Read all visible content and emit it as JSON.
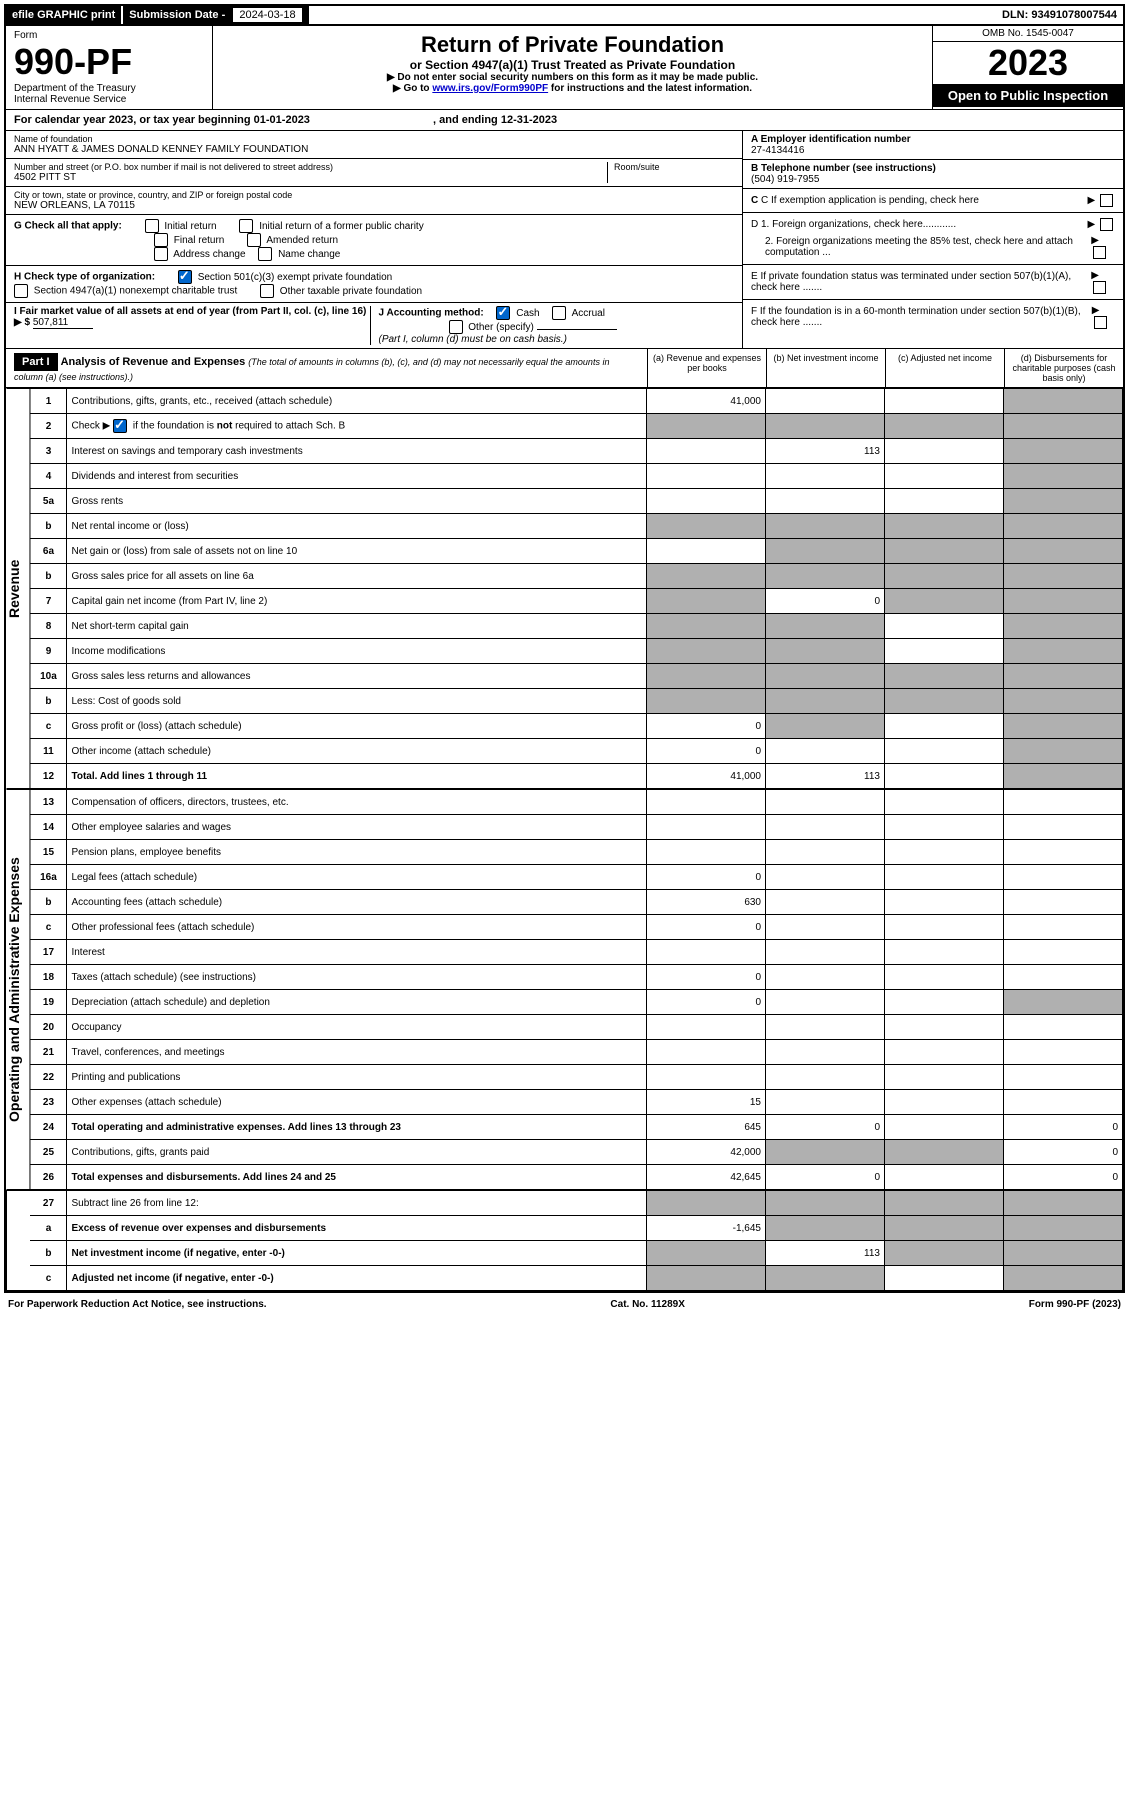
{
  "topbar": {
    "efile": "efile GRAPHIC print",
    "submission_label": "Submission Date - ",
    "submission_date": "2024-03-18",
    "dln": "DLN: 93491078007544"
  },
  "header": {
    "form_word": "Form",
    "form_number": "990-PF",
    "dept1": "Department of the Treasury",
    "dept2": "Internal Revenue Service",
    "title": "Return of Private Foundation",
    "subtitle": "or Section 4947(a)(1) Trust Treated as Private Foundation",
    "instr1": "▶ Do not enter social security numbers on this form as it may be made public.",
    "instr2_pre": "▶ Go to ",
    "instr2_link": "www.irs.gov/Form990PF",
    "instr2_post": " for instructions and the latest information.",
    "omb": "OMB No. 1545-0047",
    "year": "2023",
    "open_public": "Open to Public Inspection"
  },
  "cal_year": {
    "text_pre": "For calendar year 2023, or tax year beginning ",
    "begin": "01-01-2023",
    "text_mid": " , and ending ",
    "end": "12-31-2023"
  },
  "foundation": {
    "name_label": "Name of foundation",
    "name": "ANN HYATT & JAMES DONALD KENNEY FAMILY FOUNDATION",
    "addr_label": "Number and street (or P.O. box number if mail is not delivered to street address)",
    "addr": "4502 PITT ST",
    "room_label": "Room/suite",
    "city_label": "City or town, state or province, country, and ZIP or foreign postal code",
    "city": "NEW ORLEANS, LA  70115",
    "a_label": "A Employer identification number",
    "ein": "27-4134416",
    "b_label": "B Telephone number (see instructions)",
    "phone": "(504) 919-7955",
    "c_label": "C If exemption application is pending, check here",
    "d1": "D 1. Foreign organizations, check here............",
    "d2": "2. Foreign organizations meeting the 85% test, check here and attach computation ...",
    "e_label": "E  If private foundation status was terminated under section 507(b)(1)(A), check here .......",
    "f_label": "F  If the foundation is in a 60-month termination under section 507(b)(1)(B), check here .......",
    "g_label": "G Check all that apply:",
    "g_opts": [
      "Initial return",
      "Initial return of a former public charity",
      "Final return",
      "Amended return",
      "Address change",
      "Name change"
    ],
    "h_label": "H Check type of organization:",
    "h_opt1": "Section 501(c)(3) exempt private foundation",
    "h_opt2": "Section 4947(a)(1) nonexempt charitable trust",
    "h_opt3": "Other taxable private foundation",
    "i_label": "I Fair market value of all assets at end of year (from Part II, col. (c), line 16) ▶ $",
    "i_value": "507,811",
    "j_label": "J Accounting method:",
    "j_cash": "Cash",
    "j_accrual": "Accrual",
    "j_other": "Other (specify)",
    "j_note": "(Part I, column (d) must be on cash basis.)"
  },
  "part1": {
    "label": "Part I",
    "title": "Analysis of Revenue and Expenses",
    "title_note": "(The total of amounts in columns (b), (c), and (d) may not necessarily equal the amounts in column (a) (see instructions).)",
    "col_a": "(a)  Revenue and expenses per books",
    "col_b": "(b)  Net investment income",
    "col_c": "(c)  Adjusted net income",
    "col_d": "(d)  Disbursements for charitable purposes (cash basis only)"
  },
  "revenue_label": "Revenue",
  "expenses_label": "Operating and Administrative Expenses",
  "rows": [
    {
      "n": "1",
      "desc": "Contributions, gifts, grants, etc., received (attach schedule)",
      "a": "41,000",
      "b": "",
      "c": "",
      "d": "",
      "shade": [
        "d"
      ]
    },
    {
      "n": "2",
      "desc": "Check ▶ ☑ if the foundation is not required to attach Sch. B",
      "a": "",
      "b": "",
      "c": "",
      "d": "",
      "shade": [
        "a",
        "b",
        "c",
        "d"
      ],
      "checked": true
    },
    {
      "n": "3",
      "desc": "Interest on savings and temporary cash investments",
      "a": "",
      "b": "113",
      "c": "",
      "d": "",
      "shade": [
        "d"
      ]
    },
    {
      "n": "4",
      "desc": "Dividends and interest from securities",
      "a": "",
      "b": "",
      "c": "",
      "d": "",
      "shade": [
        "d"
      ]
    },
    {
      "n": "5a",
      "desc": "Gross rents",
      "a": "",
      "b": "",
      "c": "",
      "d": "",
      "shade": [
        "d"
      ]
    },
    {
      "n": "b",
      "desc": "Net rental income or (loss)",
      "a": "",
      "b": "",
      "c": "",
      "d": "",
      "shade": [
        "a",
        "b",
        "c",
        "d"
      ]
    },
    {
      "n": "6a",
      "desc": "Net gain or (loss) from sale of assets not on line 10",
      "a": "",
      "b": "",
      "c": "",
      "d": "",
      "shade": [
        "b",
        "c",
        "d"
      ]
    },
    {
      "n": "b",
      "desc": "Gross sales price for all assets on line 6a",
      "a": "",
      "b": "",
      "c": "",
      "d": "",
      "shade": [
        "a",
        "b",
        "c",
        "d"
      ]
    },
    {
      "n": "7",
      "desc": "Capital gain net income (from Part IV, line 2)",
      "a": "",
      "b": "0",
      "c": "",
      "d": "",
      "shade": [
        "a",
        "c",
        "d"
      ]
    },
    {
      "n": "8",
      "desc": "Net short-term capital gain",
      "a": "",
      "b": "",
      "c": "",
      "d": "",
      "shade": [
        "a",
        "b",
        "d"
      ]
    },
    {
      "n": "9",
      "desc": "Income modifications",
      "a": "",
      "b": "",
      "c": "",
      "d": "",
      "shade": [
        "a",
        "b",
        "d"
      ]
    },
    {
      "n": "10a",
      "desc": "Gross sales less returns and allowances",
      "a": "",
      "b": "",
      "c": "",
      "d": "",
      "shade": [
        "a",
        "b",
        "c",
        "d"
      ]
    },
    {
      "n": "b",
      "desc": "Less: Cost of goods sold",
      "a": "",
      "b": "",
      "c": "",
      "d": "",
      "shade": [
        "a",
        "b",
        "c",
        "d"
      ]
    },
    {
      "n": "c",
      "desc": "Gross profit or (loss) (attach schedule)",
      "a": "0",
      "b": "",
      "c": "",
      "d": "",
      "shade": [
        "b",
        "d"
      ]
    },
    {
      "n": "11",
      "desc": "Other income (attach schedule)",
      "a": "0",
      "b": "",
      "c": "",
      "d": "",
      "shade": [
        "d"
      ]
    },
    {
      "n": "12",
      "desc": "Total. Add lines 1 through 11",
      "a": "41,000",
      "b": "113",
      "c": "",
      "d": "",
      "shade": [
        "d"
      ],
      "bold": true
    }
  ],
  "exp_rows": [
    {
      "n": "13",
      "desc": "Compensation of officers, directors, trustees, etc.",
      "a": "",
      "b": "",
      "c": "",
      "d": ""
    },
    {
      "n": "14",
      "desc": "Other employee salaries and wages",
      "a": "",
      "b": "",
      "c": "",
      "d": ""
    },
    {
      "n": "15",
      "desc": "Pension plans, employee benefits",
      "a": "",
      "b": "",
      "c": "",
      "d": ""
    },
    {
      "n": "16a",
      "desc": "Legal fees (attach schedule)",
      "a": "0",
      "b": "",
      "c": "",
      "d": ""
    },
    {
      "n": "b",
      "desc": "Accounting fees (attach schedule)",
      "a": "630",
      "b": "",
      "c": "",
      "d": ""
    },
    {
      "n": "c",
      "desc": "Other professional fees (attach schedule)",
      "a": "0",
      "b": "",
      "c": "",
      "d": ""
    },
    {
      "n": "17",
      "desc": "Interest",
      "a": "",
      "b": "",
      "c": "",
      "d": ""
    },
    {
      "n": "18",
      "desc": "Taxes (attach schedule) (see instructions)",
      "a": "0",
      "b": "",
      "c": "",
      "d": ""
    },
    {
      "n": "19",
      "desc": "Depreciation (attach schedule) and depletion",
      "a": "0",
      "b": "",
      "c": "",
      "d": "",
      "shade": [
        "d"
      ]
    },
    {
      "n": "20",
      "desc": "Occupancy",
      "a": "",
      "b": "",
      "c": "",
      "d": ""
    },
    {
      "n": "21",
      "desc": "Travel, conferences, and meetings",
      "a": "",
      "b": "",
      "c": "",
      "d": ""
    },
    {
      "n": "22",
      "desc": "Printing and publications",
      "a": "",
      "b": "",
      "c": "",
      "d": ""
    },
    {
      "n": "23",
      "desc": "Other expenses (attach schedule)",
      "a": "15",
      "b": "",
      "c": "",
      "d": ""
    },
    {
      "n": "24",
      "desc": "Total operating and administrative expenses. Add lines 13 through 23",
      "a": "645",
      "b": "0",
      "c": "",
      "d": "0",
      "bold": true
    },
    {
      "n": "25",
      "desc": "Contributions, gifts, grants paid",
      "a": "42,000",
      "b": "",
      "c": "",
      "d": "0",
      "shade": [
        "b",
        "c"
      ]
    },
    {
      "n": "26",
      "desc": "Total expenses and disbursements. Add lines 24 and 25",
      "a": "42,645",
      "b": "0",
      "c": "",
      "d": "0",
      "bold": true
    }
  ],
  "net_rows": [
    {
      "n": "27",
      "desc": "Subtract line 26 from line 12:",
      "a": "",
      "b": "",
      "c": "",
      "d": "",
      "shade": [
        "a",
        "b",
        "c",
        "d"
      ]
    },
    {
      "n": "a",
      "desc": "Excess of revenue over expenses and disbursements",
      "a": "-1,645",
      "b": "",
      "c": "",
      "d": "",
      "shade": [
        "b",
        "c",
        "d"
      ],
      "bold": true
    },
    {
      "n": "b",
      "desc": "Net investment income (if negative, enter -0-)",
      "a": "",
      "b": "113",
      "c": "",
      "d": "",
      "shade": [
        "a",
        "c",
        "d"
      ],
      "bold": true
    },
    {
      "n": "c",
      "desc": "Adjusted net income (if negative, enter -0-)",
      "a": "",
      "b": "",
      "c": "",
      "d": "",
      "shade": [
        "a",
        "b",
        "d"
      ],
      "bold": true
    }
  ],
  "footer": {
    "left": "For Paperwork Reduction Act Notice, see instructions.",
    "mid": "Cat. No. 11289X",
    "right": "Form 990-PF (2023)"
  }
}
